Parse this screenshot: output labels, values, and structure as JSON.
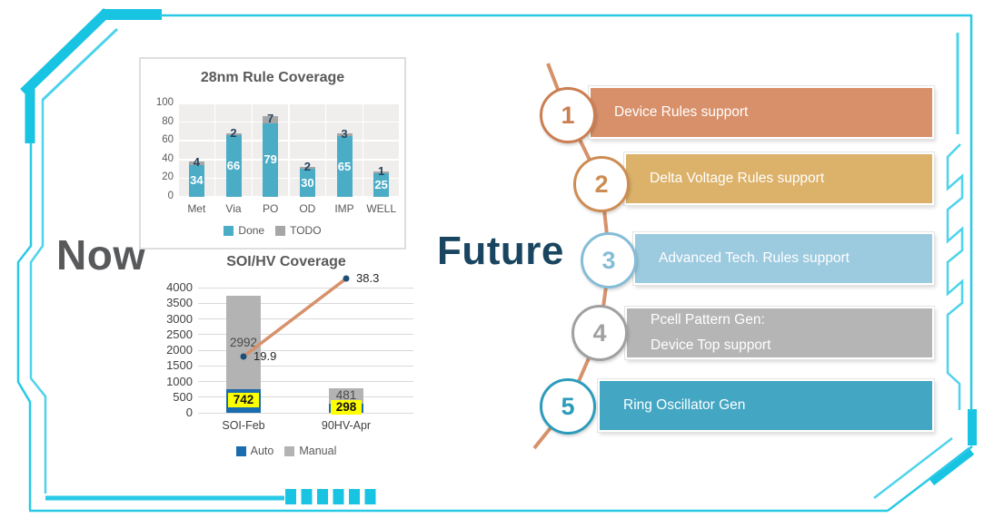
{
  "slide": {
    "now_label": "Now",
    "future_label": "Future"
  },
  "colors": {
    "frame_cyan": "#19c3e2",
    "frame_cyan_light": "#4ed3ec",
    "frame_cyan_mid": "#2ac9e6",
    "connector_orange": "#d6926b",
    "now_text": "#58595b",
    "future_text": "#1a4560"
  },
  "chart_data": [
    {
      "type": "bar",
      "stacked": true,
      "title": "28nm Rule Coverage",
      "categories": [
        "Met",
        "Via",
        "PO",
        "OD",
        "IMP",
        "WELL"
      ],
      "series": [
        {
          "name": "Done",
          "color": "#4bacc6",
          "values": [
            34,
            66,
            79,
            30,
            65,
            25
          ],
          "label_color": "#ffffff"
        },
        {
          "name": "TODO",
          "color": "#a6a6a6",
          "values": [
            4,
            2,
            7,
            2,
            3,
            1
          ],
          "label_color": "#26435f"
        }
      ],
      "xlabel": "",
      "ylabel": "",
      "ylim": [
        0,
        100
      ],
      "yticks": [
        0,
        20,
        40,
        60,
        80,
        100
      ],
      "grid": true,
      "legend_position": "bottom"
    },
    {
      "type": "bar+line",
      "stacked": true,
      "title": "SOI/HV Coverage",
      "categories": [
        "SOI-Feb",
        "90HV-Apr"
      ],
      "series": [
        {
          "name": "Auto",
          "color": "#1b6cae",
          "values": [
            742,
            298
          ],
          "label_bg": "#ffff00",
          "label_color": "#111111"
        },
        {
          "name": "Manual",
          "color": "#b3b3b3",
          "values": [
            2992,
            481
          ],
          "label_color": "#4a4a4a"
        }
      ],
      "line_series": {
        "values": [
          19.9,
          38.3
        ],
        "color": "#d6926b",
        "marker_color": "#1f4e79",
        "label_color": "#262626"
      },
      "xlabel": "",
      "ylabel": "",
      "ylim": [
        0,
        4000
      ],
      "yticks": [
        0,
        500,
        1000,
        1500,
        2000,
        2500,
        3000,
        3500,
        4000
      ],
      "grid": true,
      "legend_position": "bottom"
    }
  ],
  "future": {
    "items": [
      {
        "number": "1",
        "label": "Device Rules support",
        "bar_color": "#d8906a",
        "accent_color": "#cb7e51"
      },
      {
        "number": "2",
        "label": "Delta Voltage Rules support",
        "bar_color": "#dcb169",
        "accent_color": "#cd8d52"
      },
      {
        "number": "3",
        "label": "Advanced Tech. Rules support",
        "bar_color": "#9ccadf",
        "accent_color": "#85bdd7"
      },
      {
        "number": "4",
        "label": "Pcell Pattern Gen:",
        "label2": "Device Top support",
        "bar_color": "#b5b5b5",
        "accent_color": "#a0a0a0"
      },
      {
        "number": "5",
        "label": "Ring Oscillator Gen",
        "bar_color": "#43a6c3",
        "accent_color": "#2d9cbb"
      }
    ]
  }
}
